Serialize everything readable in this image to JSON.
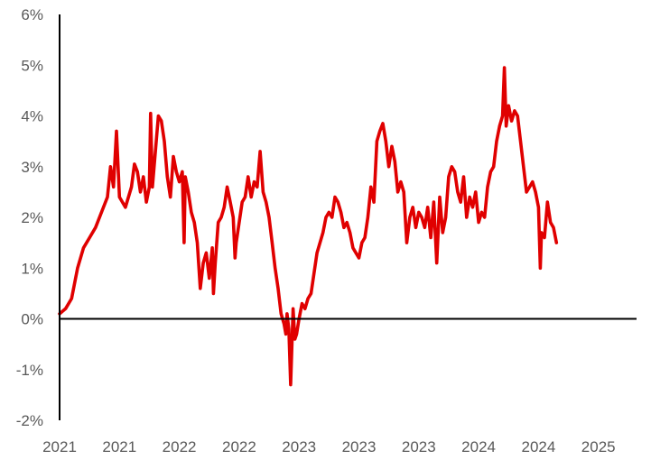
{
  "chart_data": {
    "type": "line",
    "title": "",
    "xlabel": "",
    "ylabel": "",
    "colors": {
      "series": "#e00000",
      "axis": "#000000",
      "text": "#595959",
      "background": "#ffffff"
    },
    "grid": false,
    "legend": "none",
    "ylim": [
      -2,
      6
    ],
    "xlim": [
      0,
      11
    ],
    "y_ticks": [
      {
        "value": 6,
        "label": "6%"
      },
      {
        "value": 5,
        "label": "5%"
      },
      {
        "value": 4,
        "label": "4%"
      },
      {
        "value": 3,
        "label": "3%"
      },
      {
        "value": 2,
        "label": "2%"
      },
      {
        "value": 1,
        "label": "1%"
      },
      {
        "value": 0,
        "label": "0%"
      },
      {
        "value": -1,
        "label": "-1%"
      },
      {
        "value": -2,
        "label": "-2%"
      }
    ],
    "x_ticks": [
      {
        "value": 0,
        "label": "2021"
      },
      {
        "value": 1,
        "label": "2021"
      },
      {
        "value": 2,
        "label": "2022"
      },
      {
        "value": 3,
        "label": "2022"
      },
      {
        "value": 4,
        "label": "2023"
      },
      {
        "value": 5,
        "label": "2023"
      },
      {
        "value": 6,
        "label": "2023"
      },
      {
        "value": 7,
        "label": "2024"
      },
      {
        "value": 8,
        "label": "2024"
      },
      {
        "value": 9,
        "label": "2025"
      }
    ],
    "series": [
      {
        "values": [
          [
            0.0,
            0.1
          ],
          [
            0.1,
            0.2
          ],
          [
            0.2,
            0.4
          ],
          [
            0.3,
            1.0
          ],
          [
            0.4,
            1.4
          ],
          [
            0.5,
            1.6
          ],
          [
            0.6,
            1.8
          ],
          [
            0.7,
            2.1
          ],
          [
            0.8,
            2.4
          ],
          [
            0.85,
            3.0
          ],
          [
            0.9,
            2.6
          ],
          [
            0.95,
            3.7
          ],
          [
            1.0,
            2.4
          ],
          [
            1.1,
            2.2
          ],
          [
            1.2,
            2.6
          ],
          [
            1.25,
            3.05
          ],
          [
            1.3,
            2.9
          ],
          [
            1.35,
            2.5
          ],
          [
            1.4,
            2.8
          ],
          [
            1.45,
            2.3
          ],
          [
            1.5,
            2.6
          ],
          [
            1.52,
            4.05
          ],
          [
            1.55,
            2.6
          ],
          [
            1.6,
            3.3
          ],
          [
            1.65,
            4.0
          ],
          [
            1.7,
            3.9
          ],
          [
            1.75,
            3.5
          ],
          [
            1.8,
            2.8
          ],
          [
            1.85,
            2.4
          ],
          [
            1.9,
            3.2
          ],
          [
            1.95,
            2.9
          ],
          [
            2.0,
            2.7
          ],
          [
            2.05,
            2.9
          ],
          [
            2.08,
            1.5
          ],
          [
            2.1,
            2.8
          ],
          [
            2.15,
            2.5
          ],
          [
            2.2,
            2.1
          ],
          [
            2.25,
            1.9
          ],
          [
            2.3,
            1.5
          ],
          [
            2.35,
            0.6
          ],
          [
            2.4,
            1.1
          ],
          [
            2.45,
            1.3
          ],
          [
            2.5,
            0.8
          ],
          [
            2.55,
            1.4
          ],
          [
            2.57,
            0.5
          ],
          [
            2.6,
            1.1
          ],
          [
            2.65,
            1.9
          ],
          [
            2.7,
            2.0
          ],
          [
            2.75,
            2.2
          ],
          [
            2.8,
            2.6
          ],
          [
            2.85,
            2.3
          ],
          [
            2.9,
            2.0
          ],
          [
            2.93,
            1.2
          ],
          [
            2.95,
            1.5
          ],
          [
            3.0,
            1.9
          ],
          [
            3.05,
            2.3
          ],
          [
            3.1,
            2.4
          ],
          [
            3.15,
            2.8
          ],
          [
            3.2,
            2.4
          ],
          [
            3.25,
            2.7
          ],
          [
            3.3,
            2.6
          ],
          [
            3.35,
            3.3
          ],
          [
            3.4,
            2.5
          ],
          [
            3.45,
            2.3
          ],
          [
            3.5,
            2.0
          ],
          [
            3.55,
            1.5
          ],
          [
            3.6,
            1.0
          ],
          [
            3.65,
            0.6
          ],
          [
            3.7,
            0.1
          ],
          [
            3.75,
            -0.1
          ],
          [
            3.78,
            -0.3
          ],
          [
            3.8,
            0.1
          ],
          [
            3.83,
            -0.2
          ],
          [
            3.86,
            -1.3
          ],
          [
            3.9,
            0.2
          ],
          [
            3.93,
            -0.4
          ],
          [
            3.96,
            -0.3
          ],
          [
            4.0,
            0.0
          ],
          [
            4.05,
            0.3
          ],
          [
            4.1,
            0.2
          ],
          [
            4.15,
            0.4
          ],
          [
            4.2,
            0.5
          ],
          [
            4.25,
            0.9
          ],
          [
            4.3,
            1.3
          ],
          [
            4.35,
            1.5
          ],
          [
            4.4,
            1.7
          ],
          [
            4.45,
            2.0
          ],
          [
            4.5,
            2.1
          ],
          [
            4.55,
            2.0
          ],
          [
            4.6,
            2.4
          ],
          [
            4.65,
            2.3
          ],
          [
            4.7,
            2.1
          ],
          [
            4.75,
            1.8
          ],
          [
            4.8,
            1.9
          ],
          [
            4.85,
            1.7
          ],
          [
            4.9,
            1.4
          ],
          [
            4.95,
            1.3
          ],
          [
            5.0,
            1.2
          ],
          [
            5.05,
            1.5
          ],
          [
            5.1,
            1.6
          ],
          [
            5.15,
            2.0
          ],
          [
            5.2,
            2.6
          ],
          [
            5.25,
            2.3
          ],
          [
            5.3,
            3.5
          ],
          [
            5.35,
            3.7
          ],
          [
            5.4,
            3.85
          ],
          [
            5.45,
            3.5
          ],
          [
            5.5,
            3.0
          ],
          [
            5.55,
            3.4
          ],
          [
            5.6,
            3.1
          ],
          [
            5.65,
            2.5
          ],
          [
            5.7,
            2.7
          ],
          [
            5.75,
            2.5
          ],
          [
            5.8,
            1.5
          ],
          [
            5.85,
            2.0
          ],
          [
            5.9,
            2.2
          ],
          [
            5.95,
            1.8
          ],
          [
            6.0,
            2.1
          ],
          [
            6.05,
            2.0
          ],
          [
            6.1,
            1.8
          ],
          [
            6.15,
            2.2
          ],
          [
            6.2,
            1.6
          ],
          [
            6.25,
            2.3
          ],
          [
            6.3,
            1.1
          ],
          [
            6.35,
            2.4
          ],
          [
            6.4,
            1.7
          ],
          [
            6.45,
            2.0
          ],
          [
            6.5,
            2.8
          ],
          [
            6.55,
            3.0
          ],
          [
            6.6,
            2.9
          ],
          [
            6.65,
            2.5
          ],
          [
            6.7,
            2.3
          ],
          [
            6.75,
            2.8
          ],
          [
            6.8,
            2.0
          ],
          [
            6.85,
            2.4
          ],
          [
            6.9,
            2.2
          ],
          [
            6.95,
            2.5
          ],
          [
            7.0,
            1.9
          ],
          [
            7.05,
            2.1
          ],
          [
            7.1,
            2.0
          ],
          [
            7.15,
            2.6
          ],
          [
            7.2,
            2.9
          ],
          [
            7.25,
            3.0
          ],
          [
            7.3,
            3.5
          ],
          [
            7.35,
            3.8
          ],
          [
            7.4,
            4.0
          ],
          [
            7.43,
            4.95
          ],
          [
            7.46,
            3.8
          ],
          [
            7.5,
            4.2
          ],
          [
            7.55,
            3.9
          ],
          [
            7.6,
            4.1
          ],
          [
            7.65,
            4.0
          ],
          [
            7.7,
            3.5
          ],
          [
            7.75,
            3.0
          ],
          [
            7.8,
            2.5
          ],
          [
            7.85,
            2.6
          ],
          [
            7.9,
            2.7
          ],
          [
            7.95,
            2.5
          ],
          [
            8.0,
            2.2
          ],
          [
            8.03,
            1.0
          ],
          [
            8.05,
            1.7
          ],
          [
            8.1,
            1.6
          ],
          [
            8.15,
            2.3
          ],
          [
            8.2,
            1.9
          ],
          [
            8.25,
            1.8
          ],
          [
            8.3,
            1.5
          ]
        ]
      }
    ]
  }
}
